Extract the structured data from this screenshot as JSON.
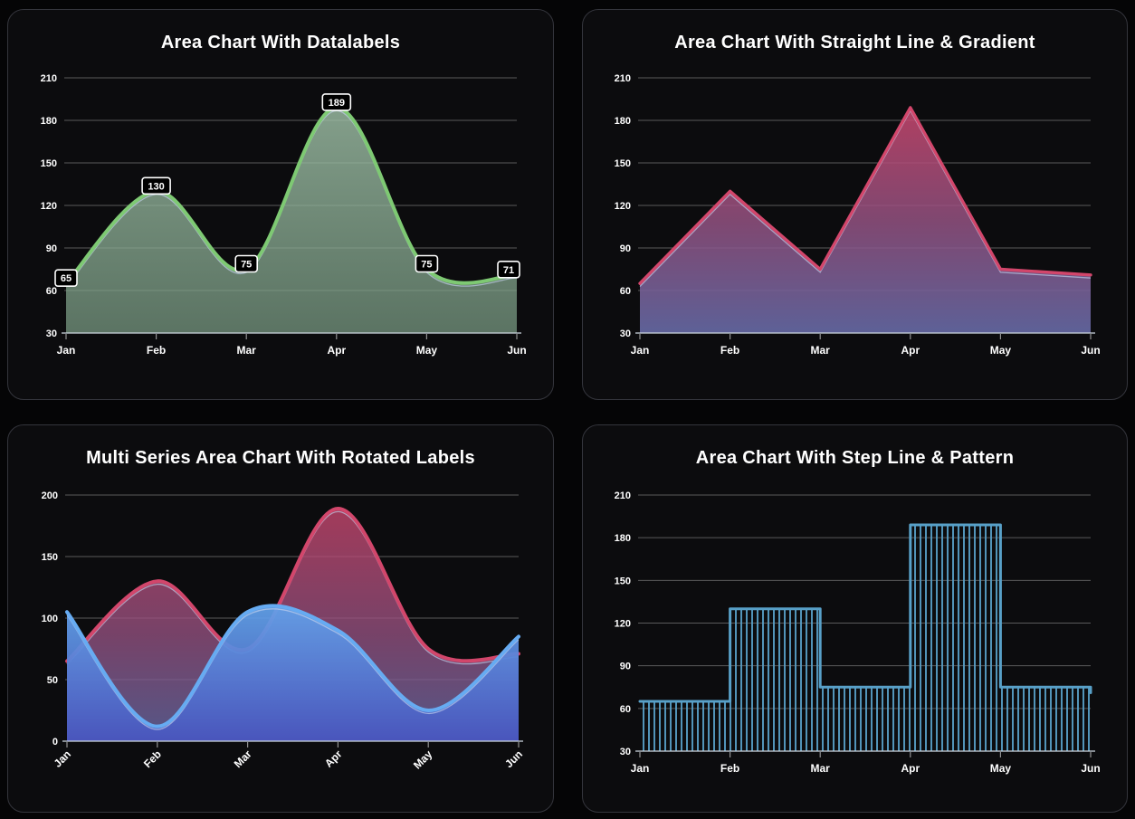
{
  "theme": {
    "page_bg": "#050506",
    "card_bg": "#0c0c0e",
    "card_border": "#34353c",
    "grid_color": "rgba(255,255,255,0.32)",
    "axis_color": "rgba(205,214,222,0.85)",
    "tick_color": "rgba(255,255,255,0.55)",
    "label_color": "#ffffff",
    "inner_line_color": "rgba(196,210,238,0.65)",
    "datalabel_bg": "#000000",
    "datalabel_border": "#ffffff",
    "datalabel_text": "#ffffff"
  },
  "chart_data": [
    {
      "type": "area",
      "curve": "smooth",
      "title": "Area Chart With Datalabels",
      "categories": [
        "Jan",
        "Feb",
        "Mar",
        "Apr",
        "May",
        "Jun"
      ],
      "values": [
        65,
        130,
        75,
        189,
        75,
        71
      ],
      "data_labels": [
        "65",
        "130",
        "75",
        "189",
        "75",
        "71"
      ],
      "show_datalabels": true,
      "rotated_labels": false,
      "ylim": [
        30,
        210
      ],
      "y_ticks": [
        210,
        180,
        150,
        120,
        90,
        60,
        30
      ],
      "grid": true,
      "legend": "none",
      "line_color": "#7ec973",
      "fill_stops": [
        [
          "0%",
          "rgba(162,196,170,0.80)"
        ],
        [
          "100%",
          "rgba(122,156,132,0.72)"
        ]
      ]
    },
    {
      "type": "area",
      "curve": "straight",
      "title": "Area Chart With Straight Line & Gradient",
      "categories": [
        "Jan",
        "Feb",
        "Mar",
        "Apr",
        "May",
        "Jun"
      ],
      "values": [
        65,
        130,
        75,
        189,
        75,
        71
      ],
      "show_datalabels": false,
      "rotated_labels": false,
      "ylim": [
        30,
        210
      ],
      "y_ticks": [
        210,
        180,
        150,
        120,
        90,
        60,
        30
      ],
      "grid": true,
      "legend": "none",
      "line_color": "#d2466b",
      "fill_stops": [
        [
          "0%",
          "rgba(205,72,112,0.85)"
        ],
        [
          "50%",
          "rgba(148,82,130,0.85)"
        ],
        [
          "100%",
          "rgba(100,104,163,0.92)"
        ]
      ]
    },
    {
      "type": "area",
      "curve": "smooth",
      "title": "Multi Series Area Chart With Rotated Labels",
      "categories": [
        "Jan",
        "Feb",
        "Mar",
        "Apr",
        "May",
        "Jun"
      ],
      "show_datalabels": false,
      "rotated_labels": true,
      "ylim": [
        0,
        200
      ],
      "y_ticks": [
        200,
        150,
        100,
        50,
        0
      ],
      "grid": true,
      "legend": "none",
      "series": [
        {
          "values": [
            65,
            130,
            75,
            189,
            75,
            71
          ],
          "line_color": "#d2466b",
          "fill_stops": [
            [
              "0%",
              "rgba(205,72,112,0.78)"
            ],
            [
              "55%",
              "rgba(148,82,130,0.78)"
            ],
            [
              "100%",
              "rgba(100,104,163,0.82)"
            ]
          ]
        },
        {
          "values": [
            105,
            12,
            105,
            90,
            25,
            85
          ],
          "line_color": "#66abf2",
          "fill_stops": [
            [
              "0%",
              "rgba(98,163,236,0.93)"
            ],
            [
              "100%",
              "rgba(73,85,190,0.96)"
            ]
          ]
        }
      ]
    },
    {
      "type": "area",
      "curve": "step",
      "title": "Area Chart With Step Line & Pattern",
      "categories": [
        "Jan",
        "Feb",
        "Mar",
        "Apr",
        "May",
        "Jun"
      ],
      "values": [
        65,
        130,
        75,
        189,
        75,
        71
      ],
      "show_datalabels": false,
      "rotated_labels": false,
      "ylim": [
        30,
        210
      ],
      "y_ticks": [
        210,
        180,
        150,
        120,
        90,
        60,
        30
      ],
      "grid": true,
      "legend": "none",
      "line_color": "#58a0c8",
      "fill_pattern": "vertical-stripes"
    }
  ]
}
